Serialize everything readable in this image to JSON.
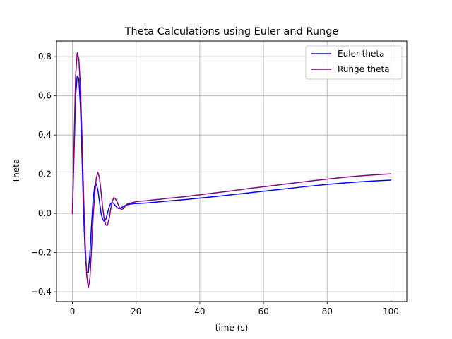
{
  "chart_data": {
    "type": "line",
    "title": "Theta Calculations using Euler and Runge",
    "xlabel": "time (s)",
    "ylabel": "Theta",
    "xlim": [
      -5,
      105
    ],
    "ylim": [
      -0.45,
      0.88
    ],
    "xticks": [
      0,
      20,
      40,
      60,
      80,
      100
    ],
    "yticks": [
      -0.4,
      -0.2,
      0.0,
      0.2,
      0.4,
      0.6,
      0.8
    ],
    "xtick_labels": [
      "0",
      "20",
      "40",
      "60",
      "80",
      "100"
    ],
    "ytick_labels": [
      "−0.4",
      "−0.2",
      "0.0",
      "0.2",
      "0.4",
      "0.6",
      "0.8"
    ],
    "grid": true,
    "legend_position": "top-right",
    "series": [
      {
        "name": "Euler theta",
        "color": "#0000ff",
        "x": [
          0,
          0.5,
          1,
          1.5,
          2,
          2.5,
          3,
          3.5,
          4,
          4.5,
          5,
          5.5,
          6,
          6.5,
          7,
          7.5,
          8,
          8.5,
          9,
          9.5,
          10,
          10.5,
          11,
          11.5,
          12,
          12.5,
          13,
          13.5,
          14,
          14.5,
          15,
          15.5,
          16,
          16.5,
          17,
          17.5,
          18,
          18.5,
          19,
          19.5,
          20,
          21,
          22,
          23,
          24,
          25,
          26,
          28,
          30,
          32,
          35,
          40,
          45,
          50,
          55,
          60,
          65,
          70,
          75,
          80,
          85,
          90,
          95,
          100
        ],
        "y": [
          0,
          0.3,
          0.6,
          0.7,
          0.69,
          0.55,
          0.3,
          0.0,
          -0.2,
          -0.3,
          -0.3,
          -0.2,
          -0.06,
          0.07,
          0.14,
          0.15,
          0.12,
          0.06,
          0.0,
          -0.03,
          -0.04,
          -0.03,
          0.0,
          0.03,
          0.05,
          0.055,
          0.05,
          0.04,
          0.03,
          0.025,
          0.025,
          0.03,
          0.035,
          0.04,
          0.043,
          0.045,
          0.047,
          0.048,
          0.049,
          0.05,
          0.05,
          0.051,
          0.052,
          0.053,
          0.054,
          0.056,
          0.057,
          0.06,
          0.063,
          0.066,
          0.07,
          0.078,
          0.086,
          0.095,
          0.104,
          0.113,
          0.122,
          0.131,
          0.14,
          0.148,
          0.155,
          0.161,
          0.166,
          0.17
        ]
      },
      {
        "name": "Runge theta",
        "color": "#800080",
        "x": [
          0,
          0.5,
          1,
          1.5,
          2,
          2.5,
          3,
          3.5,
          4,
          4.5,
          5,
          5.5,
          6,
          6.5,
          7,
          7.5,
          8,
          8.5,
          9,
          9.5,
          10,
          10.5,
          11,
          11.5,
          12,
          12.5,
          13,
          13.5,
          14,
          14.5,
          15,
          15.5,
          16,
          16.5,
          17,
          17.5,
          18,
          18.5,
          19,
          19.5,
          20,
          21,
          22,
          23,
          24,
          25,
          26,
          28,
          30,
          32,
          35,
          40,
          45,
          50,
          55,
          60,
          65,
          70,
          75,
          80,
          85,
          90,
          95,
          100
        ],
        "y": [
          0,
          0.35,
          0.7,
          0.82,
          0.79,
          0.65,
          0.4,
          0.1,
          -0.15,
          -0.32,
          -0.38,
          -0.33,
          -0.18,
          -0.02,
          0.1,
          0.18,
          0.21,
          0.18,
          0.11,
          0.03,
          -0.03,
          -0.06,
          -0.06,
          -0.03,
          0.02,
          0.06,
          0.08,
          0.075,
          0.06,
          0.04,
          0.025,
          0.02,
          0.025,
          0.035,
          0.045,
          0.05,
          0.052,
          0.054,
          0.056,
          0.058,
          0.06,
          0.062,
          0.063,
          0.064,
          0.066,
          0.068,
          0.07,
          0.073,
          0.077,
          0.08,
          0.085,
          0.095,
          0.105,
          0.115,
          0.126,
          0.136,
          0.146,
          0.156,
          0.166,
          0.175,
          0.184,
          0.191,
          0.197,
          0.202
        ]
      }
    ]
  }
}
